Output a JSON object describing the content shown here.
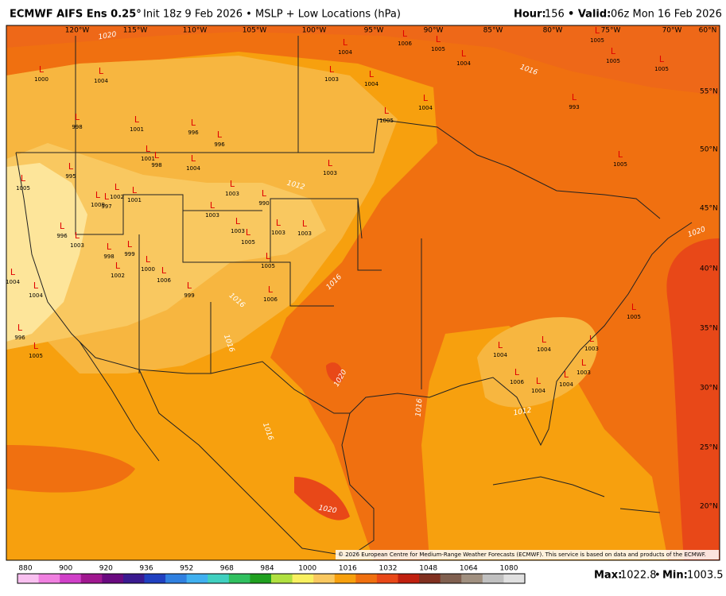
{
  "header": {
    "model": "ECMWF AIFS Ens 0.25°",
    "subtitle": "Init 18z 9 Feb 2026 • MSLP + Low Locations (hPa)",
    "hour_label": "Hour:",
    "hour": "156",
    "valid_label": "• Valid:",
    "valid": "06z Mon 16 Feb 2026"
  },
  "map": {
    "lon_labels": [
      "120°W",
      "115°W",
      "110°W",
      "105°W",
      "100°W",
      "95°W",
      "90°W",
      "85°W",
      "80°W",
      "75°W",
      "70°W",
      "60°N"
    ],
    "lat_labels": [
      "55°N",
      "50°N",
      "45°N",
      "40°N",
      "35°N",
      "30°N",
      "25°N",
      "20°N"
    ],
    "isobar_labels": [
      "1020",
      "1016",
      "1012",
      "1016",
      "1016",
      "1016",
      "1020",
      "1016",
      "1012",
      "1016",
      "1020",
      "1020"
    ],
    "low_symbol": "L",
    "lows": [
      1000,
      1004,
      998,
      1001,
      996,
      996,
      1001,
      998,
      1004,
      995,
      1005,
      1009,
      997,
      1002,
      1001,
      1003,
      990,
      996,
      1003,
      999,
      998,
      1003,
      1003,
      1005,
      1003,
      1003,
      1003,
      1003,
      1004,
      1004,
      1006,
      1005,
      1004,
      1004,
      1005,
      993,
      1005,
      1005,
      1005,
      1005,
      1005,
      1006,
      999,
      1006,
      1000,
      1004,
      996,
      1005,
      1004,
      1006,
      1004,
      1004,
      1003,
      1005,
      1003,
      1004,
      1002,
      1004
    ],
    "copyright": "© 2026 European Centre for Medium-Range Weather Forecasts (ECMWF). This service is based on data and products of the ECMWF."
  },
  "colorbar": {
    "ticks": [
      880,
      900,
      920,
      936,
      952,
      968,
      984,
      1000,
      1016,
      1032,
      1048,
      1064,
      1080
    ]
  },
  "footer": {
    "max_label": "Max:",
    "max": "1022.8",
    "sep": "•",
    "min_label": "Min:",
    "min": "1003.5"
  }
}
